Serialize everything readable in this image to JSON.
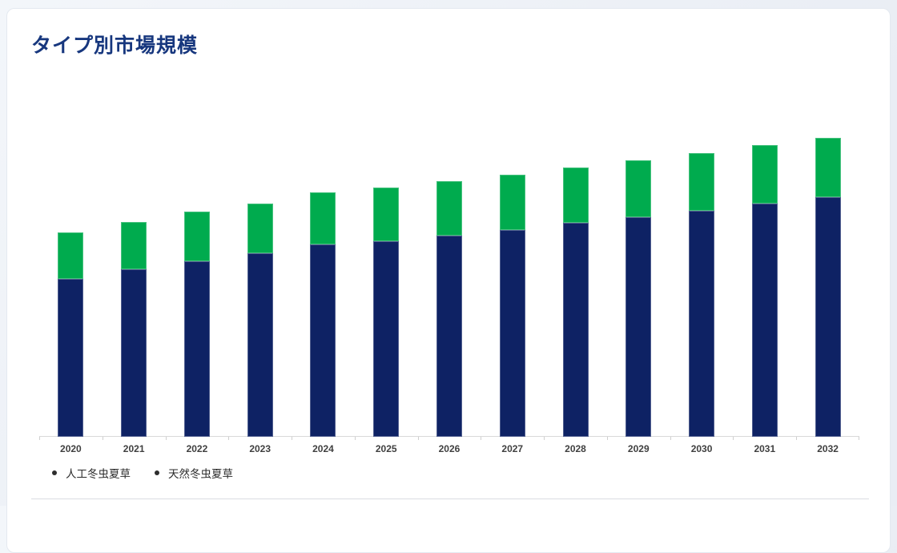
{
  "card": {
    "title": "タイプ別市場規模"
  },
  "chart_data": {
    "type": "bar",
    "stacked": true,
    "title": "タイプ別市場規模",
    "xlabel": "",
    "ylabel": "",
    "grid": false,
    "y_axis_visible": false,
    "legend_position": "bottom-left",
    "ylim": [
      0,
      400
    ],
    "categories": [
      "2020",
      "2021",
      "2022",
      "2023",
      "2024",
      "2025",
      "2026",
      "2027",
      "2028",
      "2029",
      "2030",
      "2031",
      "2032"
    ],
    "series": [
      {
        "name": "人工冬虫夏草",
        "color": "#0e2264",
        "values": [
          197,
          209,
          219,
          229,
          240,
          244,
          251,
          258,
          267,
          274,
          282,
          291,
          299
        ]
      },
      {
        "name": "天然冬虫夏草",
        "color": "#00ab4e",
        "values": [
          58,
          59,
          62,
          62,
          65,
          67,
          68,
          69,
          69,
          71,
          72,
          73,
          74
        ]
      }
    ]
  },
  "colors": {
    "title_text": "#17377e",
    "bar_navy": "#0e2264",
    "bar_green": "#00ab4e",
    "axis_line": "#d9d9d9",
    "tick_label": "#3f3f3f",
    "legend_dot": "#2d2d2d",
    "legend_text": "#2a2a2a",
    "page_background": "#edf1f7",
    "card_background": "#ffffff",
    "card_border": "#e4e9f0",
    "divider": "#dadde2"
  }
}
